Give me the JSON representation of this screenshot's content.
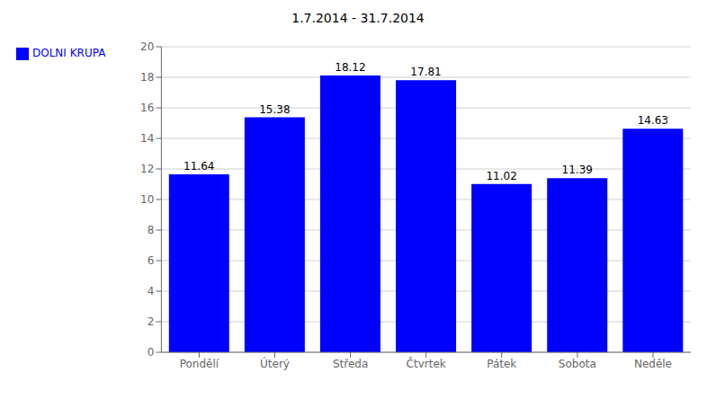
{
  "chart_data": {
    "type": "bar",
    "title": "1.7.2014 - 31.7.2014",
    "categories": [
      "Pondělí",
      "Úterý",
      "Středa",
      "Čtvrtek",
      "Pátek",
      "Sobota",
      "Neděle"
    ],
    "series": [
      {
        "name": "DOLNI KRUPA",
        "color": "#0000FF",
        "values": [
          11.64,
          15.38,
          18.12,
          17.81,
          11.02,
          11.39,
          14.63
        ]
      }
    ],
    "ylim": [
      0,
      20
    ],
    "yticks": [
      0,
      2,
      4,
      6,
      8,
      10,
      12,
      14,
      16,
      18,
      20
    ],
    "grid": true,
    "legend": "upper left",
    "data_labels": true
  }
}
